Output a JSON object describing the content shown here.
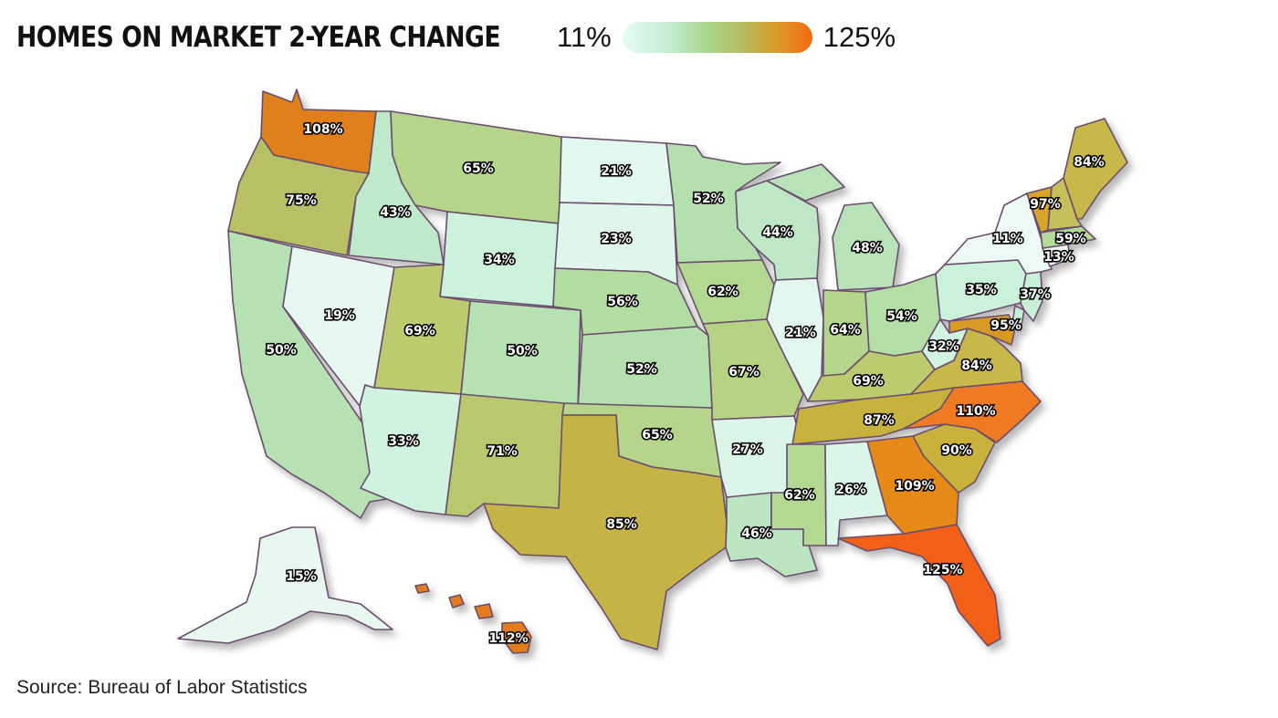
{
  "title": "HOMES ON MARKET 2-YEAR CHANGE",
  "legend": {
    "min_label": "11%",
    "max_label": "125%",
    "min": 11,
    "max": 125
  },
  "source": "Source: Bureau of Labor Statistics",
  "states": {
    "WA": {
      "label": "108%",
      "value": 108,
      "color": "#e0801e"
    },
    "OR": {
      "label": "75%",
      "value": 75,
      "color": "#b8c066"
    },
    "CA": {
      "label": "50%",
      "value": 50,
      "color": "#b6e1b2"
    },
    "NV": {
      "label": "19%",
      "value": 19,
      "color": "#e6f8f0"
    },
    "ID": {
      "label": "43%",
      "value": 43,
      "color": "#bfe9cb"
    },
    "MT": {
      "label": "65%",
      "value": 65,
      "color": "#b4d58a"
    },
    "WY": {
      "label": "34%",
      "value": 34,
      "color": "#ccf2dc"
    },
    "UT": {
      "label": "69%",
      "value": 69,
      "color": "#bccb6e"
    },
    "AZ": {
      "label": "33%",
      "value": 33,
      "color": "#cff3de"
    },
    "CO": {
      "label": "50%",
      "value": 50,
      "color": "#b6e1b2"
    },
    "NM": {
      "label": "71%",
      "value": 71,
      "color": "#b9c86c"
    },
    "ND": {
      "label": "21%",
      "value": 21,
      "color": "#e2f7ee"
    },
    "SD": {
      "label": "23%",
      "value": 23,
      "color": "#dff6eb"
    },
    "NE": {
      "label": "56%",
      "value": 56,
      "color": "#b1dda1"
    },
    "KS": {
      "label": "52%",
      "value": 52,
      "color": "#b4e0ad"
    },
    "OK": {
      "label": "65%",
      "value": 65,
      "color": "#b4d58a"
    },
    "TX": {
      "label": "85%",
      "value": 85,
      "color": "#c5b444"
    },
    "MN": {
      "label": "52%",
      "value": 52,
      "color": "#b4e0ad"
    },
    "IA": {
      "label": "62%",
      "value": 62,
      "color": "#b2d892"
    },
    "MO": {
      "label": "67%",
      "value": 67,
      "color": "#b6d283"
    },
    "AR": {
      "label": "27%",
      "value": 27,
      "color": "#dbf5e8"
    },
    "LA": {
      "label": "46%",
      "value": 46,
      "color": "#bae5c0"
    },
    "WI": {
      "label": "44%",
      "value": 44,
      "color": "#bde7c5"
    },
    "IL": {
      "label": "21%",
      "value": 21,
      "color": "#e2f7ee"
    },
    "MI": {
      "label": "48%",
      "value": 48,
      "color": "#b8e3b8"
    },
    "IN": {
      "label": "64%",
      "value": 64,
      "color": "#b3d68c"
    },
    "OH": {
      "label": "54%",
      "value": 54,
      "color": "#b3dfa7"
    },
    "KY": {
      "label": "69%",
      "value": 69,
      "color": "#bccb6e"
    },
    "TN": {
      "label": "87%",
      "value": 87,
      "color": "#c7b23e"
    },
    "MS": {
      "label": "62%",
      "value": 62,
      "color": "#b2d892"
    },
    "AL": {
      "label": "26%",
      "value": 26,
      "color": "#dcf5e9"
    },
    "GA": {
      "label": "109%",
      "value": 109,
      "color": "#e58a16"
    },
    "FL": {
      "label": "125%",
      "value": 125,
      "color": "#f25e18"
    },
    "SC": {
      "label": "90%",
      "value": 90,
      "color": "#c8b23a"
    },
    "NC": {
      "label": "110%",
      "value": 110,
      "color": "#ef7a20"
    },
    "VA": {
      "label": "84%",
      "value": 84,
      "color": "#c7b84a"
    },
    "WV": {
      "label": "32%",
      "value": 32,
      "color": "#d1f4e0"
    },
    "MD": {
      "label": "95%",
      "value": 95,
      "color": "#d79a26"
    },
    "DE": {
      "label": "",
      "value": null,
      "color": "#c6efd6"
    },
    "PA": {
      "label": "35%",
      "value": 35,
      "color": "#caf1da"
    },
    "NJ": {
      "label": "37%",
      "value": 37,
      "color": "#c8f0d7"
    },
    "NY": {
      "label": "11%",
      "value": 11,
      "color": "#ecf9f5"
    },
    "CT": {
      "label": "13%",
      "value": 13,
      "color": "#eaf9f3"
    },
    "MA": {
      "label": "59%",
      "value": 59,
      "color": "#b2db9a"
    },
    "VT": {
      "label": "97%",
      "value": 97,
      "color": "#d8a42c"
    },
    "NH": {
      "label": "",
      "value": null,
      "color": "#c5c05c"
    },
    "ME": {
      "label": "84%",
      "value": 84,
      "color": "#c7b84a"
    },
    "AK": {
      "label": "15%",
      "value": 15,
      "color": "#e8f8f1"
    },
    "HI": {
      "label": "112%",
      "value": 112,
      "color": "#e37c1a"
    }
  }
}
